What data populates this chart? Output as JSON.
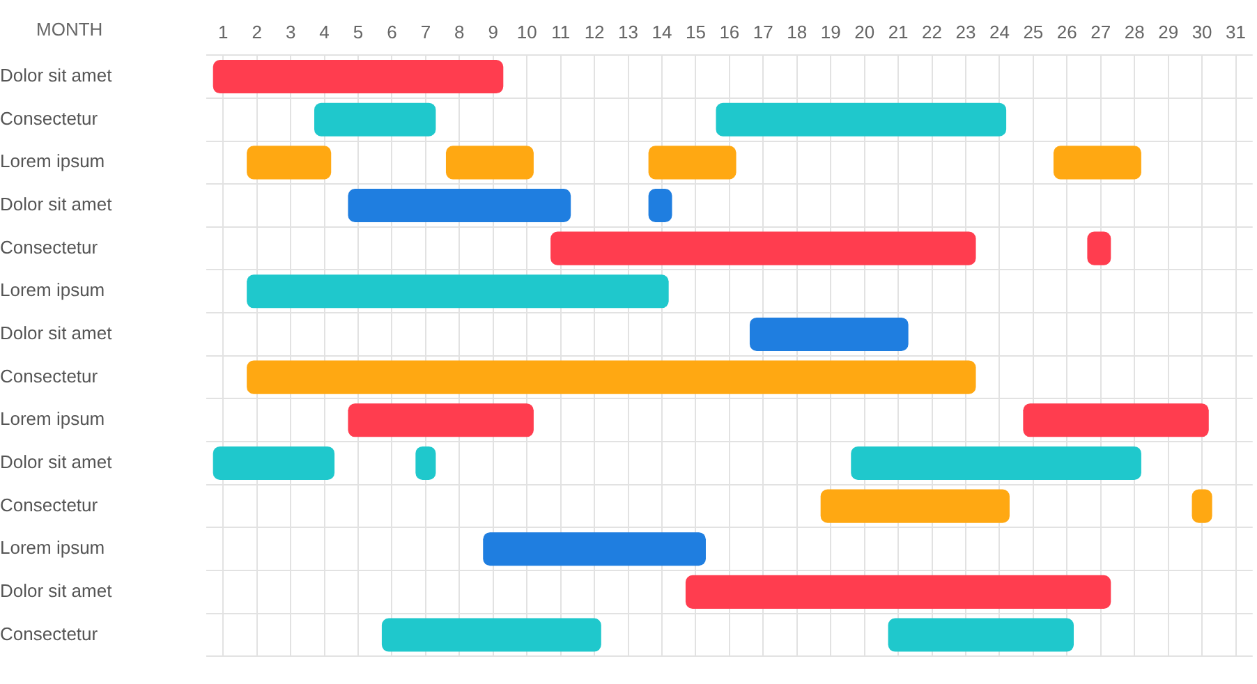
{
  "chart_data": {
    "type": "bar",
    "orientation": "horizontal",
    "ylabel": "MONTH",
    "categories": [
      "Dolor sit amet",
      "Consectetur",
      "Lorem ipsum",
      "Dolor sit amet",
      "Consectetur",
      "Lorem ipsum",
      "Dolor sit amet",
      "Consectetur",
      "Lorem ipsum",
      "Dolor sit amet",
      "Consectetur",
      "Lorem ipsum",
      "Dolor sit amet",
      "Consectetur"
    ],
    "series": [
      {
        "base": [
          0.7,
          3.7,
          1.7,
          4.7,
          10.7,
          1.7,
          16.6,
          1.7,
          4.7,
          0.7,
          18.7,
          8.7,
          14.7,
          5.7
        ],
        "values": [
          8.6,
          3.6,
          2.5,
          6.6,
          12.6,
          12.5,
          4.7,
          21.6,
          5.5,
          3.6,
          5.6,
          6.6,
          12.6,
          6.5
        ],
        "colors": [
          "#ff3d4f",
          "#1fc8cc",
          "#ffa812",
          "#1f7ee0",
          "#ff3d4f",
          "#1fc8cc",
          "#1f7ee0",
          "#ffa812",
          "#ff3d4f",
          "#1fc8cc",
          "#ffa812",
          "#1f7ee0",
          "#ff3d4f",
          "#1fc8cc"
        ]
      },
      {
        "base": [
          null,
          15.6,
          7.6,
          13.6,
          26.6,
          null,
          null,
          null,
          24.7,
          6.7,
          29.7,
          null,
          null,
          20.7
        ],
        "values": [
          null,
          8.6,
          2.6,
          0.7,
          0.7,
          null,
          null,
          null,
          5.5,
          0.6,
          0.6,
          null,
          null,
          5.5
        ],
        "colors": [
          "#ff3d4f",
          "#1fc8cc",
          "#ffa812",
          "#1f7ee0",
          "#ff3d4f",
          "#1fc8cc",
          "#1f7ee0",
          "#ffa812",
          "#ff3d4f",
          "#1fc8cc",
          "#ffa812",
          "#1f7ee0",
          "#ff3d4f",
          "#1fc8cc"
        ]
      },
      {
        "base": [
          null,
          null,
          13.6,
          null,
          null,
          null,
          null,
          null,
          null,
          19.6,
          null,
          null,
          null,
          null
        ],
        "values": [
          null,
          null,
          2.6,
          null,
          null,
          null,
          null,
          null,
          null,
          8.6,
          null,
          null,
          null,
          null
        ],
        "colors": [
          "#ff3d4f",
          "#1fc8cc",
          "#ffa812",
          "#1f7ee0",
          "#ff3d4f",
          "#1fc8cc",
          "#1f7ee0",
          "#ffa812",
          "#ff3d4f",
          "#1fc8cc",
          "#ffa812",
          "#1f7ee0",
          "#ff3d4f",
          "#1fc8cc"
        ]
      },
      {
        "base": [
          null,
          null,
          25.6,
          null,
          null,
          null,
          null,
          null,
          null,
          null,
          null,
          null,
          null,
          null
        ],
        "values": [
          null,
          null,
          2.6,
          null,
          null,
          null,
          null,
          null,
          null,
          null,
          null,
          null,
          null,
          null
        ],
        "colors": [
          "#ff3d4f",
          "#1fc8cc",
          "#ffa812",
          "#1f7ee0",
          "#ff3d4f",
          "#1fc8cc",
          "#1f7ee0",
          "#ffa812",
          "#ff3d4f",
          "#1fc8cc",
          "#ffa812",
          "#1f7ee0",
          "#ff3d4f",
          "#1fc8cc"
        ]
      }
    ],
    "xlim": [
      0.5,
      31.5
    ],
    "xticks": [
      1,
      2,
      3,
      4,
      5,
      6,
      7,
      8,
      9,
      10,
      11,
      12,
      13,
      14,
      15,
      16,
      17,
      18,
      19,
      20,
      21,
      22,
      23,
      24,
      25,
      26,
      27,
      28,
      29,
      30,
      31
    ],
    "grid": true
  }
}
